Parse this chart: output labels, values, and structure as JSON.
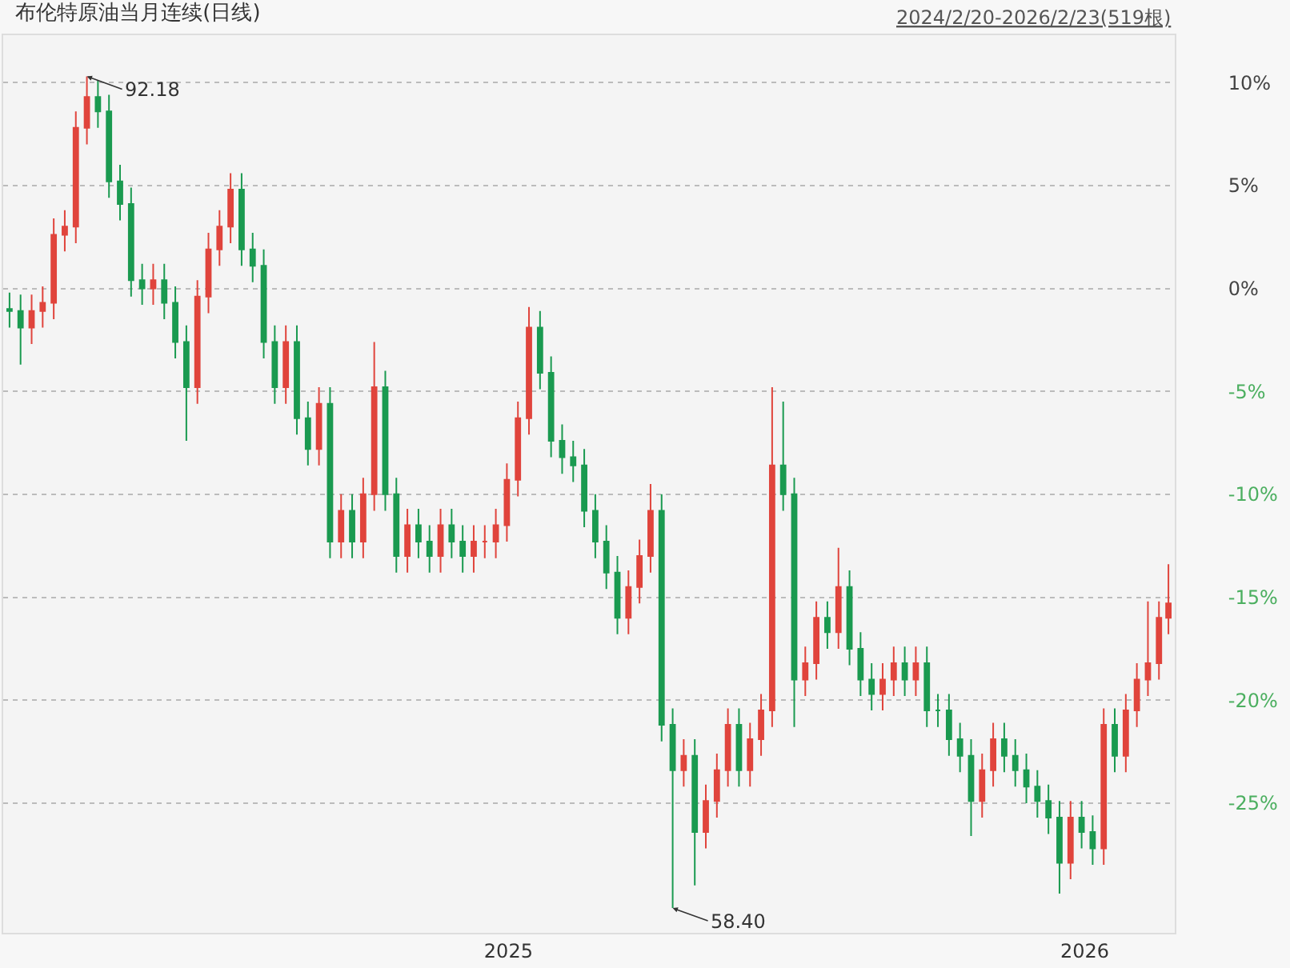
{
  "chart_data": {
    "type": "candlestick",
    "title": "布伦特原油当月连续(日线)",
    "subtitle": "2024/2/20-2026/2/23(519根)",
    "x": [
      "2024-02-20",
      "2024-02-27",
      "2024-03-05",
      "2024-03-12",
      "2024-03-19",
      "2024-03-26",
      "2024-04-02",
      "2024-04-09",
      "2024-04-16",
      "2024-04-23",
      "2024-04-30",
      "2024-05-07",
      "2024-05-14",
      "2024-05-21",
      "2024-05-28",
      "2024-06-04",
      "2024-06-11",
      "2024-06-18",
      "2024-06-25",
      "2024-07-02",
      "2024-07-09",
      "2024-07-16",
      "2024-07-23",
      "2024-07-30",
      "2024-08-06",
      "2024-08-13",
      "2024-08-20",
      "2024-08-27",
      "2024-09-03",
      "2024-09-10",
      "2024-09-17",
      "2024-09-24",
      "2024-10-01",
      "2024-10-08",
      "2024-10-15",
      "2024-10-22",
      "2024-10-29",
      "2024-11-05",
      "2024-11-12",
      "2024-11-19",
      "2024-11-26",
      "2024-12-03",
      "2024-12-10",
      "2024-12-17",
      "2024-12-24",
      "2024-12-31",
      "2025-01-07",
      "2025-01-14",
      "2025-01-21",
      "2025-01-28",
      "2025-02-04",
      "2025-02-11",
      "2025-02-18",
      "2025-02-25",
      "2025-03-04",
      "2025-03-11",
      "2025-03-18",
      "2025-03-25",
      "2025-04-01",
      "2025-04-08",
      "2025-04-15",
      "2025-04-22",
      "2025-04-29",
      "2025-05-06",
      "2025-05-13",
      "2025-05-20",
      "2025-05-27",
      "2025-06-03",
      "2025-06-10",
      "2025-06-17",
      "2025-06-24",
      "2025-07-01",
      "2025-07-08",
      "2025-07-15",
      "2025-07-22",
      "2025-07-29",
      "2025-08-05",
      "2025-08-12",
      "2025-08-19",
      "2025-08-26",
      "2025-09-02",
      "2025-09-09",
      "2025-09-16",
      "2025-09-23",
      "2025-09-30",
      "2025-10-07",
      "2025-10-14",
      "2025-10-21",
      "2025-10-28",
      "2025-11-04",
      "2025-11-11",
      "2025-11-18",
      "2025-11-25",
      "2025-12-02",
      "2025-12-09",
      "2025-12-16",
      "2025-12-23",
      "2025-12-30",
      "2026-01-06",
      "2026-01-13",
      "2026-01-20",
      "2026-01-27",
      "2026-02-03",
      "2026-02-10",
      "2026-02-17",
      "2026-02-23"
    ],
    "ohlc": [
      [
        -1.0,
        -0.2,
        -1.9,
        -1.1
      ],
      [
        -1.1,
        -0.3,
        -3.7,
        -1.9
      ],
      [
        -1.9,
        -0.3,
        -2.7,
        -1.1
      ],
      [
        -1.1,
        0.1,
        -1.9,
        -0.7
      ],
      [
        -0.7,
        3.4,
        -1.5,
        2.6
      ],
      [
        2.6,
        3.8,
        1.8,
        3.0
      ],
      [
        3.0,
        8.6,
        2.2,
        7.8
      ],
      [
        7.8,
        10.3,
        7.0,
        9.3
      ],
      [
        9.3,
        10.1,
        7.8,
        8.6
      ],
      [
        8.6,
        9.4,
        4.4,
        5.2
      ],
      [
        5.2,
        6.0,
        3.3,
        4.1
      ],
      [
        4.1,
        4.9,
        -0.4,
        0.4
      ],
      [
        0.4,
        1.2,
        -0.8,
        0.0
      ],
      [
        0.0,
        1.2,
        -0.8,
        0.4
      ],
      [
        0.4,
        1.2,
        -1.5,
        -0.7
      ],
      [
        -0.7,
        0.1,
        -3.4,
        -2.6
      ],
      [
        -2.6,
        -1.8,
        -7.4,
        -4.8
      ],
      [
        -4.8,
        0.4,
        -5.6,
        -0.4
      ],
      [
        -0.4,
        2.7,
        -1.2,
        1.9
      ],
      [
        1.9,
        3.8,
        1.1,
        3.0
      ],
      [
        3.0,
        5.6,
        2.2,
        4.8
      ],
      [
        4.8,
        5.6,
        1.1,
        1.9
      ],
      [
        1.9,
        2.7,
        0.3,
        1.1
      ],
      [
        1.1,
        1.9,
        -3.4,
        -2.6
      ],
      [
        -2.6,
        -1.8,
        -5.6,
        -4.8
      ],
      [
        -4.8,
        -1.8,
        -5.6,
        -2.6
      ],
      [
        -2.6,
        -1.8,
        -7.1,
        -6.3
      ],
      [
        -6.3,
        -5.5,
        -8.6,
        -7.8
      ],
      [
        -7.8,
        -4.8,
        -8.6,
        -5.6
      ],
      [
        -5.6,
        -4.8,
        -13.1,
        -12.3
      ],
      [
        -12.3,
        -10.0,
        -13.1,
        -10.8
      ],
      [
        -10.8,
        -10.0,
        -13.1,
        -12.3
      ],
      [
        -12.3,
        -9.2,
        -13.1,
        -10.0
      ],
      [
        -10.0,
        -2.6,
        -10.8,
        -4.8
      ],
      [
        -4.8,
        -4.0,
        -10.8,
        -10.0
      ],
      [
        -10.0,
        -9.2,
        -13.8,
        -13.0
      ],
      [
        -13.0,
        -10.7,
        -13.8,
        -11.5
      ],
      [
        -11.5,
        -10.7,
        -13.1,
        -12.3
      ],
      [
        -12.3,
        -11.5,
        -13.8,
        -13.0
      ],
      [
        -13.0,
        -10.7,
        -13.8,
        -11.5
      ],
      [
        -11.5,
        -10.7,
        -13.1,
        -12.3
      ],
      [
        -12.3,
        -11.5,
        -13.8,
        -13.0
      ],
      [
        -13.0,
        -11.5,
        -13.8,
        -12.3
      ],
      [
        -12.3,
        -11.5,
        -13.1,
        -12.3
      ],
      [
        -12.3,
        -10.7,
        -13.1,
        -11.5
      ],
      [
        -11.5,
        -8.5,
        -12.3,
        -9.3
      ],
      [
        -9.3,
        -5.5,
        -10.1,
        -6.3
      ],
      [
        -6.3,
        -0.9,
        -7.1,
        -1.9
      ],
      [
        -1.9,
        -1.1,
        -4.9,
        -4.1
      ],
      [
        -4.1,
        -3.3,
        -8.2,
        -7.4
      ],
      [
        -7.4,
        -6.6,
        -9.0,
        -8.2
      ],
      [
        -8.2,
        -7.4,
        -9.4,
        -8.6
      ],
      [
        -8.6,
        -7.8,
        -11.6,
        -10.8
      ],
      [
        -10.8,
        -10.0,
        -13.1,
        -12.3
      ],
      [
        -12.3,
        -11.5,
        -14.6,
        -13.8
      ],
      [
        -13.8,
        -13.0,
        -16.8,
        -16.0
      ],
      [
        -16.0,
        -13.7,
        -16.8,
        -14.5
      ],
      [
        -14.5,
        -12.2,
        -15.3,
        -13.0
      ],
      [
        -13.0,
        -9.5,
        -13.8,
        -10.8
      ],
      [
        -10.8,
        -10.0,
        -22.0,
        -21.2
      ],
      [
        -21.2,
        -20.4,
        -30.1,
        -23.4
      ],
      [
        -23.4,
        -21.9,
        -24.2,
        -22.7
      ],
      [
        -22.7,
        -21.9,
        -29.0,
        -26.4
      ],
      [
        -26.4,
        -24.1,
        -27.2,
        -24.9
      ],
      [
        -24.9,
        -22.6,
        -25.7,
        -23.4
      ],
      [
        -23.4,
        -20.4,
        -24.2,
        -21.2
      ],
      [
        -21.2,
        -20.4,
        -24.2,
        -23.4
      ],
      [
        -23.4,
        -21.1,
        -24.2,
        -21.9
      ],
      [
        -21.9,
        -19.7,
        -22.7,
        -20.5
      ],
      [
        -20.5,
        -4.8,
        -21.3,
        -8.6
      ],
      [
        -8.6,
        -5.5,
        -10.8,
        -10.0
      ],
      [
        -10.0,
        -9.2,
        -21.3,
        -19.0
      ],
      [
        -19.0,
        -17.4,
        -19.8,
        -18.2
      ],
      [
        -18.2,
        -15.2,
        -19.0,
        -16.0
      ],
      [
        -16.0,
        -15.2,
        -17.5,
        -16.7
      ],
      [
        -16.7,
        -12.6,
        -17.5,
        -14.5
      ],
      [
        -14.5,
        -13.7,
        -18.3,
        -17.5
      ],
      [
        -17.5,
        -16.7,
        -19.8,
        -19.0
      ],
      [
        -19.0,
        -18.2,
        -20.5,
        -19.7
      ],
      [
        -19.7,
        -18.2,
        -20.5,
        -19.0
      ],
      [
        -19.0,
        -17.4,
        -19.8,
        -18.2
      ],
      [
        -18.2,
        -17.4,
        -19.8,
        -19.0
      ],
      [
        -19.0,
        -17.4,
        -19.8,
        -18.2
      ],
      [
        -18.2,
        -17.4,
        -21.3,
        -20.5
      ],
      [
        -20.5,
        -19.7,
        -21.3,
        -20.5
      ],
      [
        -20.5,
        -19.7,
        -22.7,
        -21.9
      ],
      [
        -21.9,
        -21.1,
        -23.5,
        -22.7
      ],
      [
        -22.7,
        -21.9,
        -26.6,
        -24.9
      ],
      [
        -24.9,
        -22.6,
        -25.7,
        -23.4
      ],
      [
        -23.4,
        -21.1,
        -24.2,
        -21.9
      ],
      [
        -21.9,
        -21.1,
        -23.5,
        -22.7
      ],
      [
        -22.7,
        -21.9,
        -24.2,
        -23.4
      ],
      [
        -23.4,
        -22.6,
        -25.0,
        -24.2
      ],
      [
        -24.2,
        -23.4,
        -25.7,
        -24.9
      ],
      [
        -24.9,
        -24.1,
        -26.5,
        -25.7
      ],
      [
        -25.7,
        -24.9,
        -29.4,
        -27.9
      ],
      [
        -27.9,
        -24.9,
        -28.7,
        -25.7
      ],
      [
        -25.7,
        -24.9,
        -27.2,
        -26.4
      ],
      [
        -26.4,
        -25.6,
        -28.0,
        -27.2
      ],
      [
        -27.2,
        -20.4,
        -28.0,
        -21.2
      ],
      [
        -21.2,
        -20.4,
        -23.5,
        -22.7
      ],
      [
        -22.7,
        -19.7,
        -23.5,
        -20.5
      ],
      [
        -20.5,
        -18.2,
        -21.3,
        -19.0
      ],
      [
        -19.0,
        -15.2,
        -19.8,
        -18.2
      ],
      [
        -18.2,
        -15.2,
        -19.0,
        -16.0
      ],
      [
        -16.0,
        -13.4,
        -16.8,
        -15.3
      ]
    ],
    "annotations": [
      {
        "text": "92.18",
        "x": "2024-04-09",
        "y": 10.3
      },
      {
        "text": "58.40",
        "x": "2025-04-15",
        "y": -30.1
      }
    ],
    "xlim": [
      "2024-02-16",
      "2026-02-27"
    ],
    "xticks": [
      "2025",
      "2026"
    ],
    "ylim": [
      -31.3,
      12.3
    ],
    "yticks": [
      {
        "value": 10,
        "label": "10%"
      },
      {
        "value": 5,
        "label": "5%"
      },
      {
        "value": 0,
        "label": "0%"
      },
      {
        "value": -5,
        "label": "-5%"
      },
      {
        "value": -10,
        "label": "-10%"
      },
      {
        "value": -15,
        "label": "-15%"
      },
      {
        "value": -20,
        "label": "-20%"
      },
      {
        "value": -25,
        "label": "-25%"
      }
    ],
    "grid": "y"
  }
}
